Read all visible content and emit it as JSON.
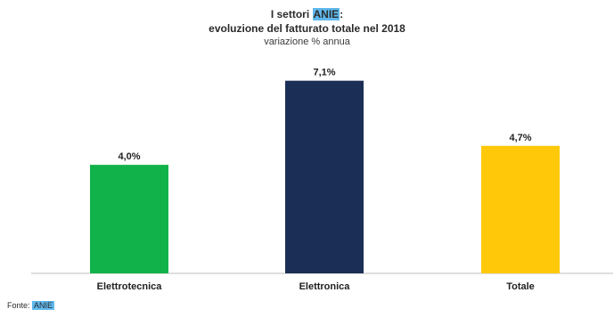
{
  "title": {
    "line1_prefix": "I settori ",
    "line1_highlight": "ANIE",
    "line1_suffix": ":",
    "line2": "evoluzione del fatturato totale nel 2018",
    "subtitle": "variazione % annua"
  },
  "source": {
    "prefix": "Fonte: ",
    "highlight": "ANIE"
  },
  "chart_data": {
    "type": "bar",
    "categories": [
      "Elettrotecnica",
      "Elettronica",
      "Totale"
    ],
    "values": [
      4.0,
      7.1,
      4.7
    ],
    "labels": [
      "4,0%",
      "7,1%",
      "4,7%"
    ],
    "colors": [
      "#12b24a",
      "#1b2f56",
      "#ffc90a"
    ],
    "ylim": [
      0,
      8.5
    ],
    "grid": false,
    "legend": "none",
    "highlight_color": "#5fb8ec"
  }
}
